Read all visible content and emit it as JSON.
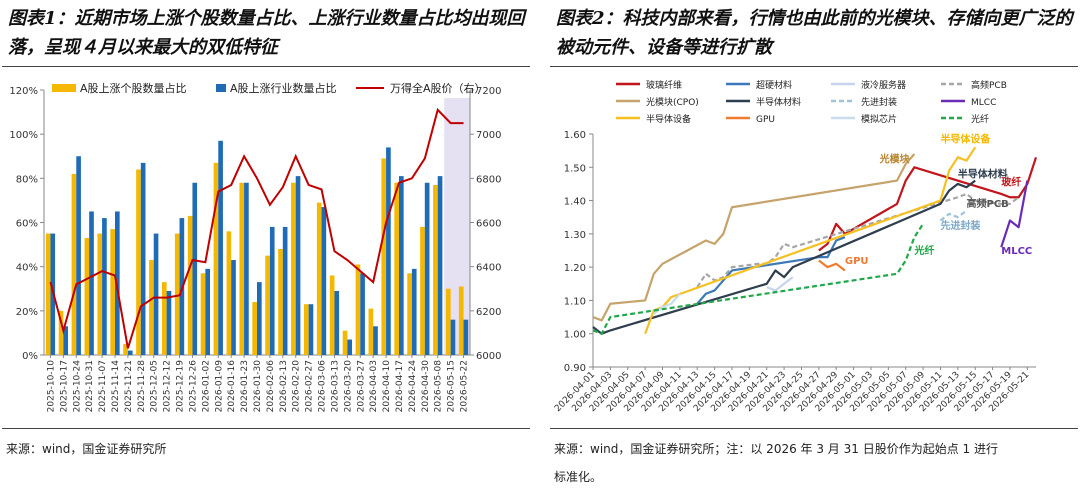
{
  "left": {
    "title": "图表1：近期市场上涨个股数量占比、上涨行业数量占比均出现回落，呈现４月以来最大的双低特征",
    "source": "来源：wind，国金证券研究所",
    "chart_data": {
      "type": "bar",
      "categories": [
        "2025-10-10",
        "2025-10-17",
        "2025-10-24",
        "2025-10-31",
        "2025-11-07",
        "2025-11-14",
        "2025-11-21",
        "2025-11-28",
        "2025-12-05",
        "2025-12-12",
        "2025-12-19",
        "2025-12-26",
        "2026-01-02",
        "2026-01-09",
        "2026-01-16",
        "2026-01-23",
        "2026-01-30",
        "2026-02-06",
        "2026-02-13",
        "2026-02-20",
        "2026-02-27",
        "2026-03-06",
        "2026-03-13",
        "2026-03-20",
        "2026-03-27",
        "2026-04-03",
        "2026-04-10",
        "2026-04-17",
        "2026-04-24",
        "2026-04-30",
        "2026-05-08",
        "2026-05-15",
        "2026-05-22"
      ],
      "tick_labels": [
        "2025-10-10",
        "2025-10-17",
        "2025-10-24",
        "2025-10-31",
        "2025-11-07",
        "2025-11-14",
        "2025-11-21",
        "2025-11-28",
        "2025-12-05",
        "2025-12-12",
        "2025-12-19",
        "2025-12-26",
        "2026-01-02",
        "2026-01-09",
        "2026-01-16",
        "2026-01-23",
        "2026-01-30",
        "2026-02-06",
        "2026-02-13",
        "2026-02-20",
        "2026-02-27",
        "2026-03-06",
        "2026-03-13",
        "2026-03-20",
        "2026-03-27",
        "2026-04-03",
        "2026-04-10",
        "2026-04-17",
        "2026-04-24",
        "2026-04-30",
        "2026-05-08",
        "2026-05-15",
        "2026-05-22"
      ],
      "series": [
        {
          "name": "A股上涨个股数量占比",
          "type": "bar",
          "axis": "left",
          "color": "#f5b800",
          "values": [
            0.55,
            0.2,
            0.82,
            0.53,
            0.55,
            0.57,
            0.05,
            0.84,
            0.43,
            0.33,
            0.55,
            0.63,
            0.37,
            0.87,
            0.56,
            0.78,
            0.24,
            0.45,
            0.48,
            0.78,
            0.23,
            0.69,
            0.36,
            0.11,
            0.41,
            0.21,
            0.89,
            0.78,
            0.37,
            0.58,
            0.77,
            0.3,
            0.31
          ]
        },
        {
          "name": "A股上涨行业数量占比",
          "type": "bar",
          "axis": "left",
          "color": "#1f6bb5",
          "values": [
            0.55,
            0.13,
            0.9,
            0.65,
            0.62,
            0.65,
            0.02,
            0.87,
            0.55,
            0.29,
            0.62,
            0.78,
            0.39,
            0.97,
            0.43,
            0.78,
            0.33,
            0.58,
            0.58,
            0.81,
            0.23,
            0.67,
            0.29,
            0.07,
            0.37,
            0.13,
            0.94,
            0.81,
            0.39,
            0.78,
            0.81,
            0.16,
            0.16
          ]
        },
        {
          "name": "万得全A股价（右）",
          "type": "line",
          "axis": "right",
          "color": "#c00000",
          "values": [
            6330,
            6110,
            6320,
            6350,
            6380,
            6360,
            6030,
            6220,
            6260,
            6260,
            6270,
            6430,
            6420,
            6740,
            6770,
            6900,
            6800,
            6680,
            6760,
            6900,
            6770,
            6750,
            6470,
            6430,
            6380,
            6330,
            6600,
            6780,
            6800,
            6890,
            7110,
            7050,
            7050
          ]
        }
      ],
      "y_left": {
        "min": 0,
        "max": 1.2,
        "ticks": [
          "0%",
          "20%",
          "40%",
          "60%",
          "80%",
          "100%",
          "120%"
        ]
      },
      "y_right": {
        "min": 6000,
        "max": 7200,
        "ticks": [
          "6000",
          "6200",
          "6400",
          "6600",
          "6800",
          "7000",
          "7200"
        ]
      },
      "highlight_range": [
        "2026-05-15",
        "2026-05-22"
      ],
      "legend_placement": "top"
    }
  },
  "right": {
    "title": "图表2：科技内部来看，行情也由此前的光模块、存储向更广泛的被动元件、设备等进行扩散",
    "source_line1": "来源：wind，国金证券研究所；注：以 2026 年 3 月 31 日股价作为起始点 1 进行",
    "source_line2": "标准化。",
    "chart_data": {
      "type": "line",
      "x_ticks": [
        "2026-04-01",
        "2026-04-03",
        "2026-04-05",
        "2026-04-07",
        "2026-04-09",
        "2026-04-11",
        "2026-04-13",
        "2026-04-15",
        "2026-04-17",
        "2026-04-19",
        "2026-04-21",
        "2026-04-23",
        "2026-04-25",
        "2026-04-27",
        "2026-04-29",
        "2026-05-01",
        "2026-05-03",
        "2026-05-05",
        "2026-05-07",
        "2026-05-09",
        "2026-05-11",
        "2026-05-13",
        "2026-05-15",
        "2026-05-17",
        "2026-05-19",
        "2026-05-21"
      ],
      "ylim": [
        0.9,
        1.6
      ],
      "y_ticks": [
        "0.90",
        "1.00",
        "1.10",
        "1.20",
        "1.30",
        "1.40",
        "1.50",
        "1.60"
      ],
      "legend_placement": "top",
      "series": [
        {
          "name": "玻璃纤维",
          "color": "#c0161c",
          "dash": "solid",
          "points": [
            [
              "2026-04-27",
              1.25
            ],
            [
              "2026-04-28",
              1.27
            ],
            [
              "2026-04-29",
              1.33
            ],
            [
              "2026-04-30",
              1.3
            ],
            [
              "2026-05-06",
              1.39
            ],
            [
              "2026-05-07",
              1.46
            ],
            [
              "2026-05-08",
              1.5
            ],
            [
              "2026-05-18",
              1.42
            ],
            [
              "2026-05-19",
              1.41
            ],
            [
              "2026-05-20",
              1.41
            ],
            [
              "2026-05-21",
              1.45
            ],
            [
              "2026-05-22",
              1.53
            ]
          ]
        },
        {
          "name": "超硬材料",
          "color": "#3d78b8",
          "dash": "solid",
          "points": [
            [
              "2026-04-13",
              1.09
            ],
            [
              "2026-04-14",
              1.12
            ],
            [
              "2026-04-15",
              1.13
            ],
            [
              "2026-04-16",
              1.16
            ],
            [
              "2026-04-17",
              1.19
            ],
            [
              "2026-04-27",
              1.23
            ],
            [
              "2026-04-28",
              1.23
            ],
            [
              "2026-04-29",
              1.28
            ],
            [
              "2026-04-30",
              1.29
            ]
          ]
        },
        {
          "name": "液冷服务器",
          "color": "#c5d5ee",
          "dash": "solid",
          "points": [
            [
              "2026-04-21",
              1.14
            ],
            [
              "2026-04-22",
              1.13
            ],
            [
              "2026-04-23",
              1.15
            ],
            [
              "2026-04-24",
              1.17
            ]
          ]
        },
        {
          "name": "高频PCB",
          "color": "#a6a6a6",
          "dash": "dashed",
          "points": [
            [
              "2026-04-13",
              1.14
            ],
            [
              "2026-04-14",
              1.18
            ],
            [
              "2026-04-15",
              1.16
            ],
            [
              "2026-04-16",
              1.17
            ],
            [
              "2026-04-17",
              1.2
            ],
            [
              "2026-04-20",
              1.21
            ],
            [
              "2026-04-21",
              1.21
            ],
            [
              "2026-04-22",
              1.23
            ],
            [
              "2026-04-23",
              1.27
            ],
            [
              "2026-04-24",
              1.26
            ],
            [
              "2026-05-13",
              1.41
            ],
            [
              "2026-05-14",
              1.42
            ],
            [
              "2026-05-15",
              1.4
            ],
            [
              "2026-05-18",
              1.39
            ],
            [
              "2026-05-19",
              1.39
            ],
            [
              "2026-05-20",
              1.41
            ]
          ]
        },
        {
          "name": "光模块(CPO)",
          "color": "#c5a36b",
          "dash": "solid",
          "points": [
            [
              "2026-04-01",
              1.05
            ],
            [
              "2026-04-02",
              1.04
            ],
            [
              "2026-04-03",
              1.09
            ],
            [
              "2026-04-07",
              1.1
            ],
            [
              "2026-04-08",
              1.18
            ],
            [
              "2026-04-09",
              1.21
            ],
            [
              "2026-04-14",
              1.28
            ],
            [
              "2026-04-15",
              1.27
            ],
            [
              "2026-04-16",
              1.3
            ],
            [
              "2026-04-17",
              1.38
            ],
            [
              "2026-05-06",
              1.46
            ],
            [
              "2026-05-07",
              1.51
            ],
            [
              "2026-05-08",
              1.54
            ]
          ]
        },
        {
          "name": "半导体材料",
          "color": "#2f3e4e",
          "dash": "solid",
          "points": [
            [
              "2026-04-01",
              1.02
            ],
            [
              "2026-04-02",
              1.0
            ],
            [
              "2026-04-03",
              1.01
            ],
            [
              "2026-04-21",
              1.15
            ],
            [
              "2026-04-22",
              1.19
            ],
            [
              "2026-04-23",
              1.17
            ],
            [
              "2026-04-24",
              1.2
            ],
            [
              "2026-05-11",
              1.39
            ],
            [
              "2026-05-12",
              1.43
            ],
            [
              "2026-05-13",
              1.45
            ],
            [
              "2026-05-14",
              1.44
            ],
            [
              "2026-05-15",
              1.46
            ]
          ]
        },
        {
          "name": "先进封装",
          "color": "#9dc3dc",
          "dash": "dashed",
          "points": [
            [
              "2026-05-11",
              1.34
            ],
            [
              "2026-05-12",
              1.36
            ],
            [
              "2026-05-13",
              1.35
            ],
            [
              "2026-05-14",
              1.37
            ]
          ]
        },
        {
          "name": "MLCC",
          "color": "#6a2bb5",
          "dash": "solid",
          "points": [
            [
              "2026-05-18",
              1.26
            ],
            [
              "2026-05-19",
              1.34
            ],
            [
              "2026-05-20",
              1.32
            ],
            [
              "2026-05-21",
              1.46
            ]
          ]
        },
        {
          "name": "半导体设备",
          "color": "#f5c020",
          "dash": "solid",
          "points": [
            [
              "2026-04-07",
              1.0
            ],
            [
              "2026-04-08",
              1.07
            ],
            [
              "2026-04-09",
              1.08
            ],
            [
              "2026-04-10",
              1.11
            ],
            [
              "2026-05-11",
              1.4
            ],
            [
              "2026-05-12",
              1.49
            ],
            [
              "2026-05-13",
              1.53
            ],
            [
              "2026-05-14",
              1.52
            ],
            [
              "2026-05-15",
              1.56
            ]
          ]
        },
        {
          "name": "GPU",
          "color": "#f07a30",
          "dash": "solid",
          "points": [
            [
              "2026-04-27",
              1.22
            ],
            [
              "2026-04-28",
              1.2
            ],
            [
              "2026-04-29",
              1.21
            ],
            [
              "2026-04-30",
              1.19
            ]
          ]
        },
        {
          "name": "模拟芯片",
          "color": "#c8dcec",
          "dash": "solid",
          "points": [
            [
              "2026-04-08",
              1.06
            ],
            [
              "2026-04-09",
              1.08
            ],
            [
              "2026-04-10",
              1.09
            ],
            [
              "2026-04-11",
              1.12
            ]
          ]
        },
        {
          "name": "光纤",
          "color": "#21a84a",
          "dash": "dashed",
          "points": [
            [
              "2026-04-01",
              1.01
            ],
            [
              "2026-04-02",
              1.0
            ],
            [
              "2026-04-03",
              1.05
            ],
            [
              "2026-05-06",
              1.18
            ],
            [
              "2026-05-07",
              1.22
            ],
            [
              "2026-05-08",
              1.29
            ],
            [
              "2026-05-09",
              1.33
            ]
          ]
        }
      ],
      "annotations": [
        {
          "text": "光模块",
          "date": "2026-05-04",
          "y": 1.515,
          "color": "#b9822c"
        },
        {
          "text": "半导体设备",
          "date": "2026-05-11",
          "y": 1.575,
          "color": "#f5b800"
        },
        {
          "text": "半导体材料",
          "date": "2026-05-13",
          "y": 1.47,
          "color": "#2f3e4e"
        },
        {
          "text": "玻纤",
          "date": "2026-05-18",
          "y": 1.445,
          "color": "#c0161c"
        },
        {
          "text": "高频PCB",
          "date": "2026-05-14",
          "y": 1.38,
          "color": "#555555"
        },
        {
          "text": "先进封装",
          "date": "2026-05-11",
          "y": 1.315,
          "color": "#7fa8c6"
        },
        {
          "text": "GPU",
          "date": "2026-04-30",
          "y": 1.21,
          "color": "#f07a30"
        },
        {
          "text": "光纤",
          "date": "2026-05-08",
          "y": 1.24,
          "color": "#21a84a"
        },
        {
          "text": "MLCC",
          "date": "2026-05-18",
          "y": 1.24,
          "color": "#6a2bb5"
        }
      ]
    }
  }
}
